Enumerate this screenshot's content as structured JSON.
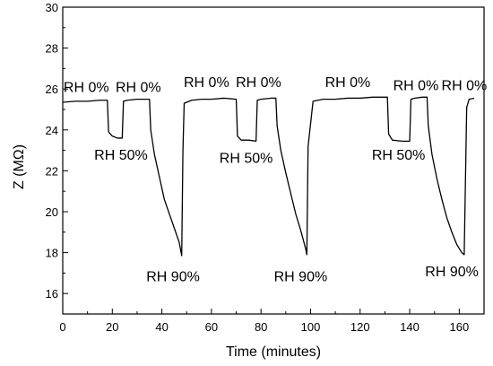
{
  "chart_data": {
    "type": "line",
    "title": "",
    "xlabel": "Time (minutes)",
    "ylabel": "Z (MΩ)",
    "xlim": [
      0,
      170
    ],
    "ylim": [
      15,
      30
    ],
    "x_ticks": [
      0,
      20,
      40,
      60,
      80,
      100,
      120,
      140,
      160
    ],
    "y_ticks": [
      16,
      18,
      20,
      22,
      24,
      26,
      28,
      30
    ],
    "grid": false,
    "legend": "none",
    "series": [
      {
        "color": "#000000",
        "x": [
          0,
          5,
          10,
          15,
          18,
          18.5,
          20,
          22,
          24,
          24.5,
          26,
          30,
          35,
          35.5,
          37,
          39,
          41,
          43,
          45,
          47,
          48,
          48.5,
          49,
          52,
          56,
          60,
          65,
          70,
          70.5,
          72,
          75,
          78,
          78.5,
          80,
          84,
          86,
          86.5,
          88,
          90,
          92,
          94,
          96,
          98,
          98.5,
          99,
          101,
          105,
          110,
          115,
          120,
          125,
          130,
          131,
          131.5,
          133,
          137,
          140,
          140.5,
          142,
          145,
          147,
          147.5,
          149,
          151,
          153,
          155,
          157,
          159,
          161,
          162,
          162.5,
          163,
          164,
          166
        ],
        "values": [
          25.35,
          25.4,
          25.4,
          25.45,
          25.45,
          23.9,
          23.7,
          23.6,
          23.6,
          25.4,
          25.45,
          25.5,
          25.5,
          24.0,
          22.8,
          21.7,
          20.6,
          19.9,
          19.2,
          18.5,
          17.85,
          23.0,
          25.3,
          25.45,
          25.5,
          25.5,
          25.55,
          25.5,
          23.7,
          23.5,
          23.5,
          23.45,
          25.45,
          25.5,
          25.55,
          25.55,
          24.2,
          23.0,
          21.9,
          20.9,
          19.9,
          19.1,
          18.2,
          17.9,
          23.2,
          25.4,
          25.5,
          25.5,
          25.55,
          25.55,
          25.6,
          25.6,
          25.6,
          23.8,
          23.5,
          23.45,
          23.45,
          25.5,
          25.55,
          25.6,
          25.6,
          24.2,
          22.8,
          21.6,
          20.6,
          19.7,
          19.0,
          18.4,
          18.0,
          17.9,
          21.5,
          25.1,
          25.5,
          25.55
        ]
      }
    ],
    "annotations": [
      {
        "text": "RH 0%",
        "x": 9.5,
        "y": 25.85
      },
      {
        "text": "RH 0%",
        "x": 30.5,
        "y": 25.85
      },
      {
        "text": "RH 50%",
        "x": 23.5,
        "y": 22.55
      },
      {
        "text": "RH 90%",
        "x": 44.5,
        "y": 16.6
      },
      {
        "text": "RH 0%",
        "x": 58.0,
        "y": 26.1
      },
      {
        "text": "RH 0%",
        "x": 79.0,
        "y": 26.1
      },
      {
        "text": "RH 50%",
        "x": 74.0,
        "y": 22.4
      },
      {
        "text": "RH 90%",
        "x": 96.0,
        "y": 16.6
      },
      {
        "text": "RH 0%",
        "x": 115.0,
        "y": 26.1
      },
      {
        "text": "RH 0%",
        "x": 142.5,
        "y": 25.95
      },
      {
        "text": "RH 0%",
        "x": 162.0,
        "y": 25.95
      },
      {
        "text": "RH 50%",
        "x": 135.5,
        "y": 22.55
      },
      {
        "text": "RH 90%",
        "x": 157.0,
        "y": 16.85
      }
    ]
  }
}
